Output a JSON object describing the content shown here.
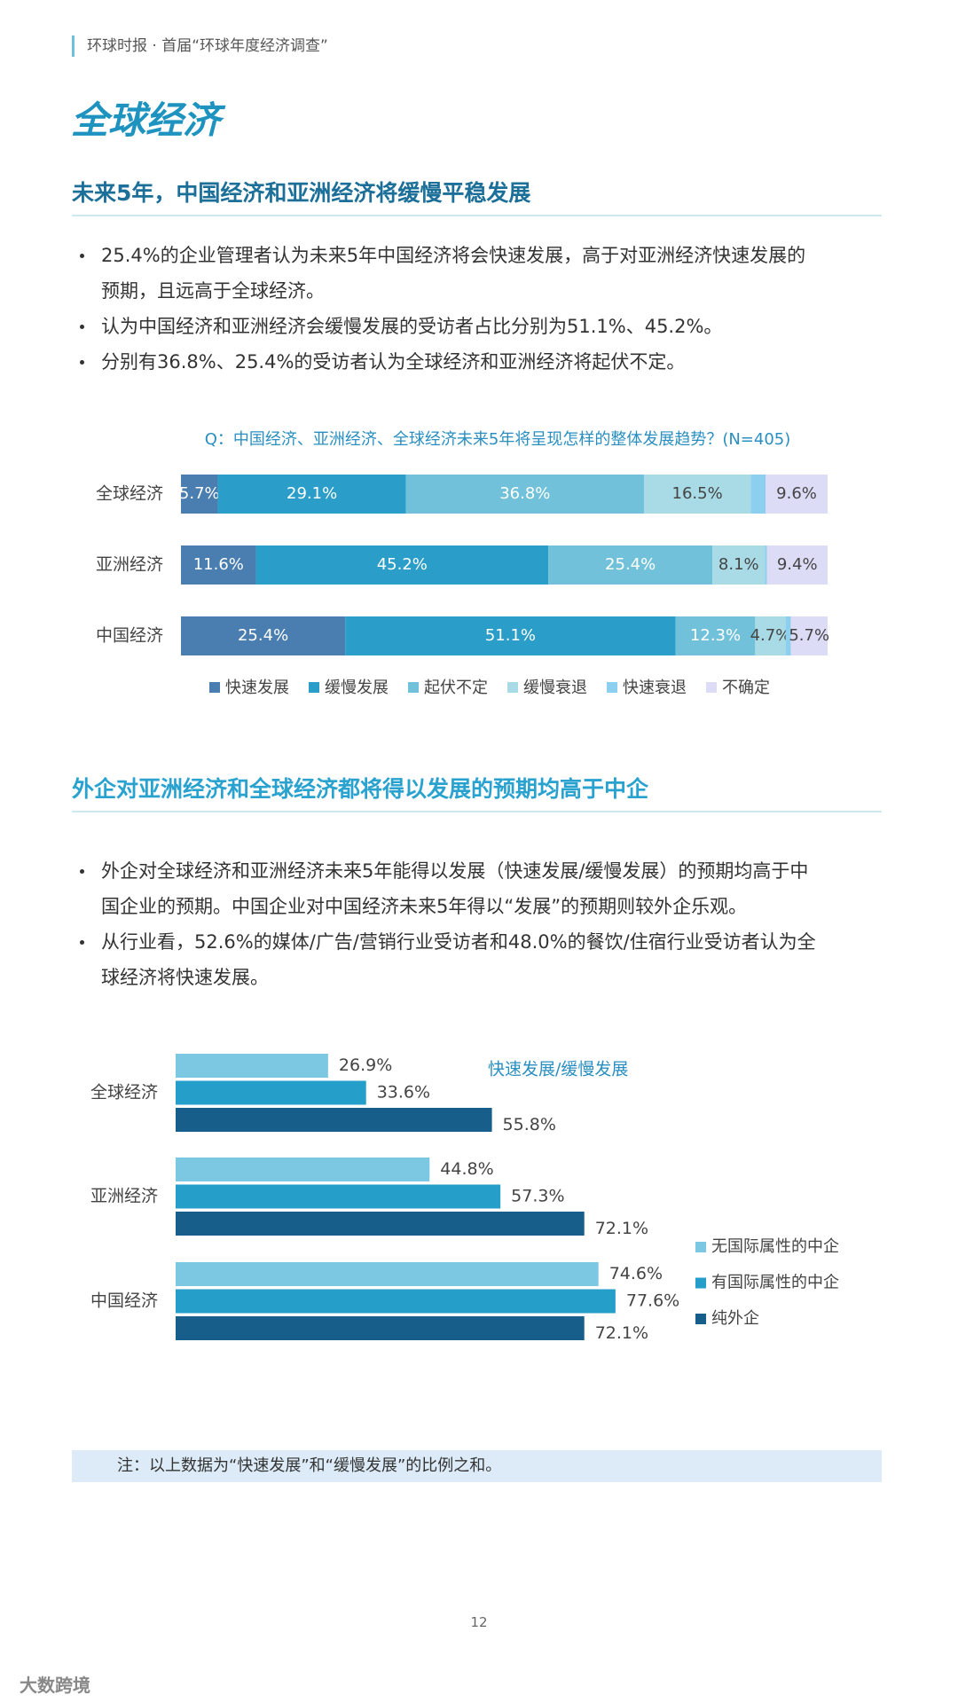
{
  "header": {
    "source": "环球时报 · 首届“环球年度经济调查”"
  },
  "title": "全球经济",
  "sections": [
    {
      "heading": "未来5年，中国经济和亚洲经济将缓慢平稳发展",
      "bullets": [
        "25.4%的企业管理者认为未来5年中国经济将会快速发展，高于对亚洲经济快速发展的预期，且远高于全球经济。",
        "认为中国经济和亚洲经济会缓慢发展的受访者占比分别为51.1%、45.2%。",
        "分别有36.8%、25.4%的受访者认为全球经济和亚洲经济将起伏不定。"
      ]
    },
    {
      "heading": "外企对亚洲经济和全球经济都将得以发展的预期均高于中企",
      "bullets": [
        "外企对全球经济和亚洲经济未来5年能得以发展（快速发展/缓慢发展）的预期均高于中国企业的预期。中国企业对中国经济未来5年得以“发展”的预期则较外企乐观。",
        "从行业看，52.6%的媒体/广告/营销行业受访者和48.0%的餐饮/住宿行业受访者认为全球经济将快速发展。"
      ]
    }
  ],
  "chart_data": [
    {
      "type": "stacked_bar",
      "title": "Q：中国经济、亚洲经济、全球经济未来5年将呈现怎样的整体发展趋势？(N=405)",
      "categories": [
        "全球经济",
        "亚洲经济",
        "中国经济"
      ],
      "xlim": [
        0,
        100
      ],
      "legend": "bottom",
      "series": [
        {
          "name": "快速发展",
          "color": "#4a7db0",
          "values": [
            5.7,
            11.6,
            25.4
          ],
          "value_labels": [
            "5.7%",
            "11.6%",
            "25.4%"
          ]
        },
        {
          "name": "缓慢发展",
          "color": "#2a9dc8",
          "values": [
            29.1,
            45.2,
            51.1
          ],
          "value_labels": [
            "29.1%",
            "45.2%",
            "51.1%"
          ]
        },
        {
          "name": "起伏不定",
          "color": "#72c1da",
          "values": [
            36.8,
            25.4,
            12.3
          ],
          "value_labels": [
            "36.8%",
            "25.4%",
            "12.3%"
          ]
        },
        {
          "name": "缓慢衰退",
          "color": "#a8dbe6",
          "values": [
            16.5,
            8.1,
            4.7
          ],
          "value_labels": [
            "16.5%",
            "8.1%",
            "4.7%"
          ]
        },
        {
          "name": "快速衰退",
          "color": "#8ccfef",
          "values": [
            2.3,
            0.3,
            0.8
          ],
          "value_labels": [
            null,
            null,
            null
          ]
        },
        {
          "name": "不确定",
          "color": "#dcdcf6",
          "values": [
            9.6,
            9.4,
            5.7
          ],
          "value_labels": [
            "9.6%",
            "9.4%",
            "5.7%"
          ]
        }
      ]
    },
    {
      "type": "grouped_bar",
      "subtitle": "快速发展/缓慢发展",
      "categories": [
        "全球经济",
        "亚洲经济",
        "中国经济"
      ],
      "xlim": [
        0,
        100
      ],
      "legend": "right",
      "series": [
        {
          "name": "无国际属性的中企",
          "color": "#7cc7e1",
          "values": [
            26.9,
            44.8,
            74.6
          ],
          "value_labels": [
            "26.9%",
            "44.8%",
            "74.6%"
          ]
        },
        {
          "name": "有国际属性的中企",
          "color": "#259fc9",
          "values": [
            33.6,
            57.3,
            77.6
          ],
          "value_labels": [
            "33.6%",
            "57.3%",
            "77.6%"
          ]
        },
        {
          "name": "纯外企",
          "color": "#175e8b",
          "values": [
            55.8,
            72.1,
            72.1
          ],
          "value_labels": [
            "55.8%",
            "72.1%",
            "72.1%"
          ]
        }
      ]
    }
  ],
  "note": "注：以上数据为“快速发展”和“缓慢发展”的比例之和。",
  "page_number": 12,
  "footer": {
    "brand": "大数跨境"
  }
}
